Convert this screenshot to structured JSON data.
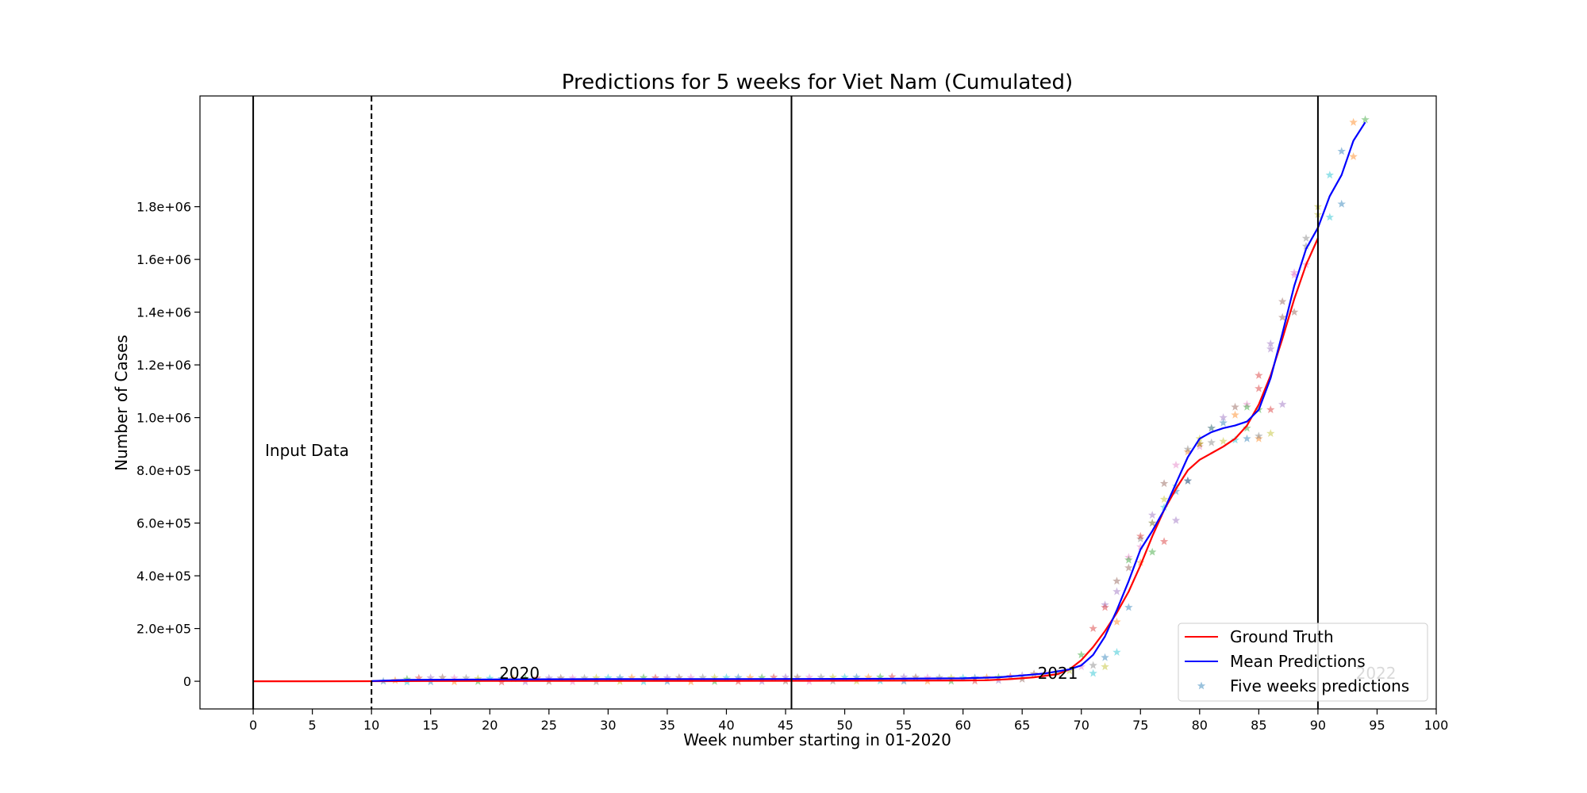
{
  "chart_data": {
    "type": "line",
    "title": "Predictions for 5 weeks for Viet Nam (Cumulated)",
    "xlabel": "Week number starting in 01-2020",
    "ylabel": "Number of Cases",
    "xlim": [
      -4.5,
      100
    ],
    "ylim": [
      -105000,
      2220000
    ],
    "xticks": [
      0,
      5,
      10,
      15,
      20,
      25,
      30,
      35,
      40,
      45,
      50,
      55,
      60,
      65,
      70,
      75,
      80,
      85,
      90,
      95,
      100
    ],
    "xtick_labels": [
      "0",
      "5",
      "10",
      "15",
      "20",
      "25",
      "30",
      "35",
      "40",
      "45",
      "50",
      "55",
      "60",
      "65",
      "70",
      "75",
      "80",
      "85",
      "90",
      "95",
      "100"
    ],
    "yticks": [
      0,
      200000,
      400000,
      600000,
      800000,
      1000000,
      1200000,
      1400000,
      1600000,
      1800000
    ],
    "ytick_labels": [
      "0",
      "2.0e+05",
      "4.0e+05",
      "6.0e+05",
      "8.0e+05",
      "1.0e+06",
      "1.2e+06",
      "1.4e+06",
      "1.6e+06",
      "1.8e+06"
    ],
    "grid": false,
    "legend_position": "bottom-right",
    "vlines": [
      {
        "x": 0,
        "style": "solid"
      },
      {
        "x": 10,
        "style": "dashed"
      },
      {
        "x": 45.5,
        "style": "solid"
      },
      {
        "x": 90,
        "style": "solid"
      }
    ],
    "annotations": [
      {
        "text": "Input Data",
        "x": 1,
        "y": 855000,
        "color": "#000000"
      },
      {
        "text": "2020",
        "x": 20.8,
        "y": 10000,
        "color": "#000000"
      },
      {
        "text": "2021",
        "x": 66.3,
        "y": 10000,
        "color": "#000000"
      },
      {
        "text": "2022",
        "x": 93.2,
        "y": 10000,
        "color": "#cccccc"
      }
    ],
    "series": [
      {
        "name": "Ground Truth",
        "color": "#ff0000",
        "x": [
          0,
          5,
          10,
          15,
          20,
          25,
          30,
          35,
          40,
          45,
          50,
          55,
          60,
          62,
          64,
          66,
          68,
          69,
          70,
          71,
          72,
          73,
          74,
          75,
          76,
          77,
          78,
          79,
          80,
          81,
          82,
          83,
          84,
          85,
          86,
          87,
          88,
          89,
          90
        ],
        "y": [
          0,
          0,
          300,
          800,
          1100,
          1200,
          1300,
          1400,
          1500,
          1700,
          2100,
          2500,
          3000,
          4000,
          8000,
          15000,
          27000,
          45000,
          80000,
          130000,
          190000,
          260000,
          340000,
          440000,
          550000,
          650000,
          730000,
          800000,
          840000,
          865000,
          890000,
          920000,
          970000,
          1050000,
          1160000,
          1300000,
          1450000,
          1580000,
          1680000
        ]
      },
      {
        "name": "Mean Predictions",
        "color": "#0000ff",
        "x": [
          10,
          13,
          20,
          30,
          40,
          50,
          55,
          60,
          63,
          65,
          67,
          69,
          70,
          71,
          72,
          73,
          74,
          75,
          76,
          77,
          78,
          79,
          80,
          81,
          82,
          83,
          84,
          85,
          86,
          87,
          88,
          89,
          90,
          91,
          92,
          93,
          94
        ],
        "y": [
          1000,
          5000,
          7000,
          8000,
          8500,
          9000,
          10000,
          11000,
          15000,
          22000,
          30000,
          45000,
          60000,
          100000,
          170000,
          270000,
          380000,
          500000,
          570000,
          650000,
          750000,
          850000,
          920000,
          945000,
          960000,
          970000,
          985000,
          1030000,
          1150000,
          1320000,
          1500000,
          1640000,
          1720000,
          1840000,
          1920000,
          2050000,
          2120000
        ]
      }
    ],
    "scatter": {
      "name": "Five weeks predictions",
      "marker": "star",
      "colors": [
        "#1f77b4",
        "#ff7f0e",
        "#2ca02c",
        "#d62728",
        "#9467bd",
        "#8c564b",
        "#e377c2",
        "#7f7f7f",
        "#bcbd22",
        "#17becf"
      ],
      "points": [
        [
          11,
          0
        ],
        [
          12,
          3000
        ],
        [
          13,
          8000
        ],
        [
          14,
          12000
        ],
        [
          15,
          13000
        ],
        [
          16,
          14000
        ],
        [
          17,
          12000
        ],
        [
          18,
          12000
        ],
        [
          19,
          10000
        ],
        [
          20,
          11000
        ],
        [
          21,
          10000
        ],
        [
          22,
          10000
        ],
        [
          23,
          11000
        ],
        [
          24,
          12000
        ],
        [
          25,
          12000
        ],
        [
          26,
          12000
        ],
        [
          27,
          12000
        ],
        [
          28,
          12000
        ],
        [
          29,
          13000
        ],
        [
          30,
          13000
        ],
        [
          31,
          13000
        ],
        [
          32,
          14000
        ],
        [
          33,
          14000
        ],
        [
          34,
          13000
        ],
        [
          35,
          13000
        ],
        [
          36,
          14000
        ],
        [
          37,
          14000
        ],
        [
          38,
          14000
        ],
        [
          39,
          14000
        ],
        [
          40,
          14000
        ],
        [
          41,
          14000
        ],
        [
          42,
          14000
        ],
        [
          43,
          14000
        ],
        [
          44,
          15000
        ],
        [
          45,
          15000
        ],
        [
          46,
          15000
        ],
        [
          47,
          15000
        ],
        [
          48,
          15000
        ],
        [
          49,
          15000
        ],
        [
          50,
          15000
        ],
        [
          51,
          15000
        ],
        [
          52,
          15000
        ],
        [
          53,
          16000
        ],
        [
          54,
          17000
        ],
        [
          55,
          16000
        ],
        [
          56,
          15000
        ],
        [
          57,
          14000
        ],
        [
          58,
          14000
        ],
        [
          59,
          13000
        ],
        [
          60,
          13000
        ],
        [
          61,
          13000
        ],
        [
          62,
          14000
        ],
        [
          63,
          15000
        ],
        [
          64,
          18000
        ],
        [
          65,
          22000
        ],
        [
          66,
          28000
        ],
        [
          67,
          30000
        ],
        [
          68,
          32000
        ],
        [
          69,
          40000
        ],
        [
          13,
          -3000
        ],
        [
          15,
          -2000
        ],
        [
          17,
          -2000
        ],
        [
          19,
          -1000
        ],
        [
          21,
          -3000
        ],
        [
          23,
          -2000
        ],
        [
          25,
          -1000
        ],
        [
          27,
          -2000
        ],
        [
          29,
          -2000
        ],
        [
          31,
          -1000
        ],
        [
          33,
          -2000
        ],
        [
          35,
          -1000
        ],
        [
          37,
          -2000
        ],
        [
          39,
          -1000
        ],
        [
          41,
          -1000
        ],
        [
          43,
          -1000
        ],
        [
          45,
          0
        ],
        [
          47,
          -1000
        ],
        [
          49,
          0
        ],
        [
          51,
          0
        ],
        [
          53,
          1000
        ],
        [
          55,
          0
        ],
        [
          57,
          0
        ],
        [
          59,
          0
        ],
        [
          61,
          1000
        ],
        [
          63,
          3000
        ],
        [
          65,
          8000
        ],
        [
          70,
          55000
        ],
        [
          71,
          60000
        ],
        [
          72,
          55000
        ],
        [
          73,
          110000
        ],
        [
          74,
          280000
        ],
        [
          75,
          450000
        ],
        [
          76,
          490000
        ],
        [
          77,
          530000
        ],
        [
          78,
          610000
        ],
        [
          79,
          760000
        ],
        [
          80,
          890000
        ],
        [
          81,
          905000
        ],
        [
          82,
          910000
        ],
        [
          83,
          915000
        ],
        [
          84,
          920000
        ],
        [
          85,
          920000
        ],
        [
          70,
          100000
        ],
        [
          71,
          200000
        ],
        [
          72,
          290000
        ],
        [
          73,
          380000
        ],
        [
          74,
          470000
        ],
        [
          75,
          540000
        ],
        [
          76,
          600000
        ],
        [
          77,
          660000
        ],
        [
          78,
          720000
        ],
        [
          79,
          870000
        ],
        [
          80,
          900000
        ],
        [
          81,
          960000
        ],
        [
          82,
          1000000
        ],
        [
          83,
          1040000
        ],
        [
          84,
          1050000
        ],
        [
          85,
          930000
        ],
        [
          86,
          940000
        ],
        [
          71,
          30000
        ],
        [
          72,
          90000
        ],
        [
          73,
          225000
        ],
        [
          74,
          460000
        ],
        [
          75,
          550000
        ],
        [
          76,
          630000
        ],
        [
          77,
          750000
        ],
        [
          78,
          820000
        ],
        [
          79,
          880000
        ],
        [
          80,
          920000
        ],
        [
          81,
          960000
        ],
        [
          82,
          980000
        ],
        [
          83,
          1010000
        ],
        [
          84,
          1040000
        ],
        [
          85,
          1160000
        ],
        [
          86,
          1280000
        ],
        [
          87,
          1380000
        ],
        [
          88,
          1550000
        ],
        [
          89,
          1680000
        ],
        [
          90,
          1800000
        ],
        [
          91,
          1920000
        ],
        [
          92,
          2010000
        ],
        [
          93,
          2120000
        ],
        [
          94,
          2130000
        ],
        [
          72,
          280000
        ],
        [
          73,
          340000
        ],
        [
          74,
          430000
        ],
        [
          75,
          510000
        ],
        [
          76,
          600000
        ],
        [
          77,
          690000
        ],
        [
          78,
          740000
        ],
        [
          79,
          760000
        ],
        [
          80,
          900000
        ],
        [
          84,
          960000
        ],
        [
          85,
          1110000
        ],
        [
          86,
          1260000
        ],
        [
          87,
          1440000
        ],
        [
          88,
          1540000
        ],
        [
          89,
          1650000
        ],
        [
          90,
          1770000
        ],
        [
          91,
          1760000
        ],
        [
          92,
          1810000
        ],
        [
          93,
          1990000
        ],
        [
          85,
          1030000
        ],
        [
          86,
          1030000
        ],
        [
          87,
          1050000
        ],
        [
          88,
          1400000
        ],
        [
          89,
          1580000
        ]
      ]
    }
  }
}
